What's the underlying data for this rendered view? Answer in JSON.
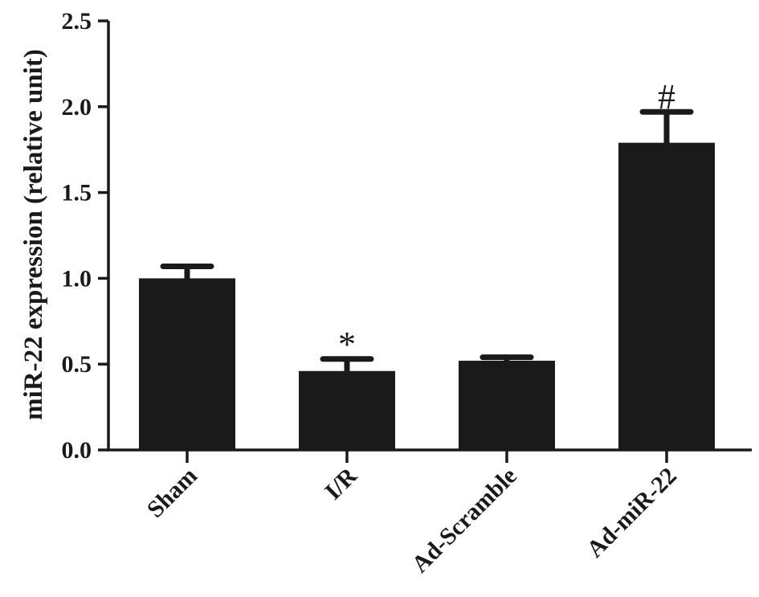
{
  "chart_data": {
    "type": "bar",
    "categories": [
      "Sham",
      "I/R",
      "Ad-Scramble",
      "Ad-miR-22"
    ],
    "values": [
      1.0,
      0.46,
      0.52,
      1.79
    ],
    "error_upper": [
      1.07,
      0.53,
      0.54,
      1.97
    ],
    "annotations": [
      "",
      "*",
      "",
      "#"
    ],
    "ylabel": "miR-22 expression (relative unit)",
    "ylim": [
      0,
      2.5
    ],
    "yticks": [
      0.0,
      0.5,
      1.0,
      1.5,
      2.0,
      2.5
    ],
    "ytick_labels": [
      "0.0",
      "0.5",
      "1.0",
      "1.5",
      "2.0",
      "2.5"
    ],
    "grid": false,
    "bar_color": "#1a1a1a"
  }
}
